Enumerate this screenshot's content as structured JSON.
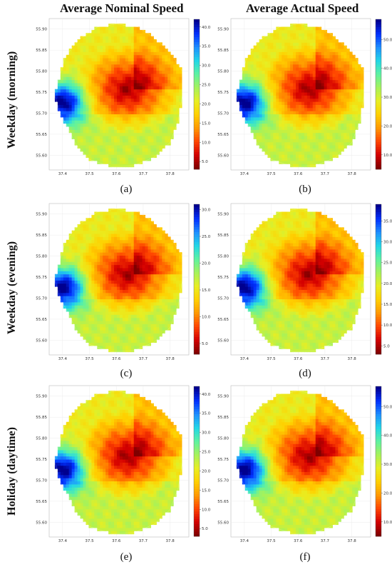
{
  "column_titles": [
    "Average Nominal Speed",
    "Average Actual Speed"
  ],
  "row_titles": [
    "Weekday (morning)",
    "Weekday (evening)",
    "Holiday (daytime)"
  ],
  "captions": [
    "(a)",
    "(b)",
    "(c)",
    "(d)",
    "(e)",
    "(f)"
  ],
  "colormap": [
    "#7f0000",
    "#d40000",
    "#ff4500",
    "#ff9900",
    "#ffd000",
    "#e8ee22",
    "#a6f25a",
    "#5ef2a0",
    "#22d7e6",
    "#1e90ff",
    "#0030ff",
    "#00008f"
  ],
  "chart_data": [
    {
      "type": "heatmap",
      "id": "a",
      "x_ticks": [
        "37.4",
        "37.5",
        "37.6",
        "37.7",
        "37.8"
      ],
      "y_ticks": [
        "55.60",
        "55.65",
        "55.70",
        "55.75",
        "55.80",
        "55.85",
        "55.90"
      ],
      "colorbar_ticks": [
        "5.0",
        "10.0",
        "15.0",
        "20.0",
        "25.0",
        "30.0",
        "35.0",
        "40.0"
      ],
      "colorbar_range": [
        3,
        42
      ]
    },
    {
      "type": "heatmap",
      "id": "b",
      "x_ticks": [
        "37.4",
        "37.5",
        "37.6",
        "37.7",
        "37.8"
      ],
      "y_ticks": [
        "55.60",
        "55.65",
        "55.70",
        "55.75",
        "55.80",
        "55.85",
        "55.90"
      ],
      "colorbar_ticks": [
        "10.0",
        "20.0",
        "30.0",
        "40.0",
        "50.0"
      ],
      "colorbar_range": [
        5,
        57
      ]
    },
    {
      "type": "heatmap",
      "id": "c",
      "x_ticks": [
        "37.4",
        "37.5",
        "37.6",
        "37.7",
        "37.8"
      ],
      "y_ticks": [
        "55.60",
        "55.65",
        "55.70",
        "55.75",
        "55.80",
        "55.85",
        "55.90"
      ],
      "colorbar_ticks": [
        "5.0",
        "10.0",
        "15.0",
        "20.0",
        "25.0",
        "30.0"
      ],
      "colorbar_range": [
        3,
        31
      ]
    },
    {
      "type": "heatmap",
      "id": "d",
      "x_ticks": [
        "37.4",
        "37.5",
        "37.6",
        "37.7",
        "37.8"
      ],
      "y_ticks": [
        "55.60",
        "55.65",
        "55.70",
        "55.75",
        "55.80",
        "55.85",
        "55.90"
      ],
      "colorbar_ticks": [
        "5.0",
        "10.0",
        "15.0",
        "20.0",
        "25.0",
        "30.0",
        "35.0"
      ],
      "colorbar_range": [
        3,
        39
      ]
    },
    {
      "type": "heatmap",
      "id": "e",
      "x_ticks": [
        "37.4",
        "37.5",
        "37.6",
        "37.7",
        "37.8"
      ],
      "y_ticks": [
        "55.60",
        "55.65",
        "55.70",
        "55.75",
        "55.80",
        "55.85",
        "55.90"
      ],
      "colorbar_ticks": [
        "5.0",
        "10.0",
        "15.0",
        "20.0",
        "25.0",
        "30.0",
        "35.0",
        "40.0"
      ],
      "colorbar_range": [
        3,
        42
      ]
    },
    {
      "type": "heatmap",
      "id": "f",
      "x_ticks": [
        "37.4",
        "37.5",
        "37.6",
        "37.7",
        "37.8"
      ],
      "y_ticks": [
        "55.60",
        "55.65",
        "55.70",
        "55.75",
        "55.80",
        "55.85",
        "55.90"
      ],
      "colorbar_ticks": [
        "10.0",
        "20.0",
        "30.0",
        "40.0",
        "50.0"
      ],
      "colorbar_range": [
        5,
        57
      ]
    }
  ]
}
